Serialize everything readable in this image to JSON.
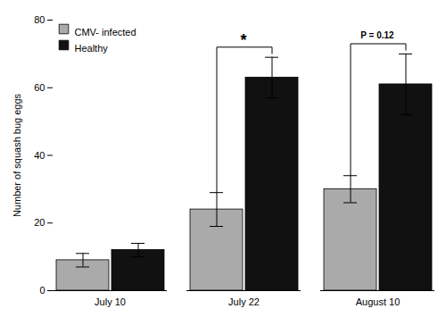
{
  "chart_data": {
    "type": "bar",
    "categories": [
      "July 10",
      "July 22",
      "August 10"
    ],
    "series": [
      {
        "name": "CMV- infected",
        "color": "#aaaaaa",
        "values": [
          9,
          24,
          30
        ],
        "errors": [
          2,
          5,
          4
        ]
      },
      {
        "name": "Healthy",
        "color": "#111111",
        "values": [
          12,
          63,
          61
        ],
        "errors": [
          2,
          6,
          9
        ]
      }
    ],
    "ylabel": "Number of squash bug eggs",
    "ylim": [
      0,
      80
    ],
    "yticks": [
      0,
      20,
      40,
      60,
      80
    ],
    "legend": "upper left",
    "annotations": [
      {
        "category": "July 22",
        "text": "*"
      },
      {
        "category": "August 10",
        "text": "P = 0.12"
      }
    ]
  }
}
